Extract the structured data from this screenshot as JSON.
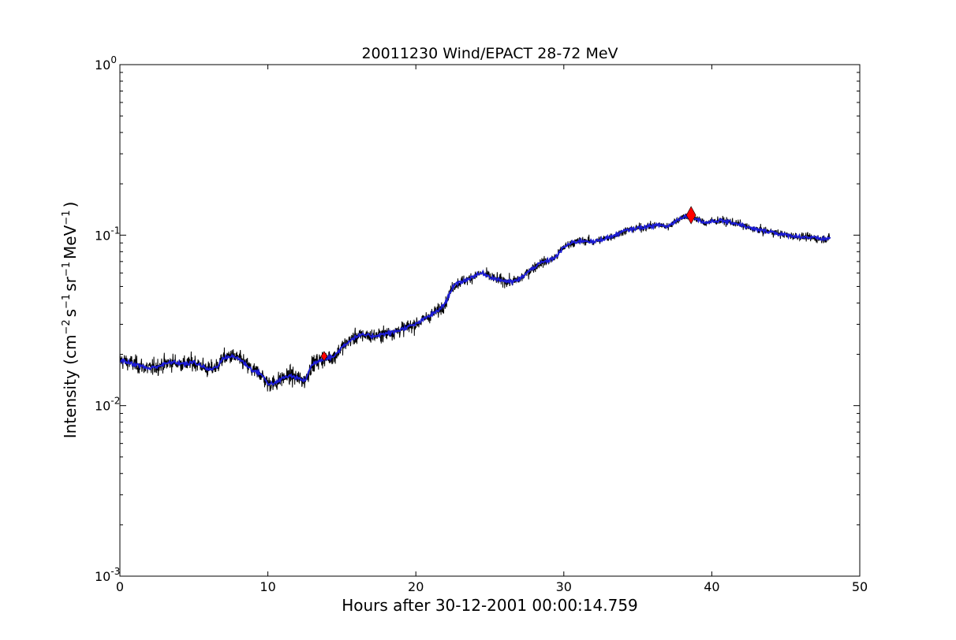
{
  "chart_data": {
    "type": "line",
    "title": "20011230 Wind/EPACT 28-72 MeV",
    "xlabel": "Hours after 30-12-2001 00:00:14.759",
    "ylabel": {
      "prefix": "Intensity (cm",
      "sup1": "−2",
      "mid1": "s",
      "sup2": "−1",
      "mid2": "sr",
      "sup3": "−1",
      "mid3": "MeV",
      "sup4": "−1",
      "suffix": ")"
    },
    "xlim": [
      0,
      50
    ],
    "ylim": [
      0.001,
      1
    ],
    "yscale": "log",
    "grid": false,
    "xticks": [
      {
        "value": 0,
        "label": "0"
      },
      {
        "value": 10,
        "label": "10"
      },
      {
        "value": 20,
        "label": "20"
      },
      {
        "value": 30,
        "label": "30"
      },
      {
        "value": 40,
        "label": "40"
      },
      {
        "value": 50,
        "label": "50"
      }
    ],
    "yticks": [
      {
        "value": 0.001,
        "base": "10",
        "exp": "-3"
      },
      {
        "value": 0.01,
        "base": "10",
        "exp": "-2"
      },
      {
        "value": 0.1,
        "base": "10",
        "exp": "-1"
      },
      {
        "value": 1,
        "base": "10",
        "exp": "0"
      }
    ],
    "series": [
      {
        "role": "raw",
        "color": "#000000",
        "noise_dex": 0.08,
        "x": [
          0,
          0.5,
          1,
          1.5,
          2,
          2.5,
          3,
          3.5,
          4,
          4.5,
          5,
          5.5,
          6,
          6.5,
          7,
          7.5,
          8,
          8.5,
          9,
          9.5,
          10,
          10.5,
          11,
          11.5,
          12,
          12.5,
          13,
          13.5,
          14,
          14.5,
          15,
          15.5,
          16,
          16.5,
          17,
          17.5,
          18,
          18.5,
          19,
          19.5,
          20,
          20.5,
          21,
          21.5,
          22,
          22.5,
          23,
          23.5,
          24,
          24.5,
          25,
          25.5,
          26,
          26.5,
          27,
          27.5,
          28,
          28.5,
          29,
          29.5,
          30,
          30.5,
          31,
          31.5,
          32,
          32.5,
          33,
          33.5,
          34,
          34.5,
          35,
          35.5,
          36,
          36.5,
          37,
          37.5,
          38,
          38.5,
          39,
          39.5,
          40,
          40.5,
          41,
          41.5,
          42,
          42.5,
          43,
          43.5,
          44,
          44.5,
          45,
          45.5,
          46,
          46.5,
          47,
          47.5,
          48
        ],
        "y": [
          0.0185,
          0.018,
          0.0175,
          0.017,
          0.0165,
          0.017,
          0.0175,
          0.018,
          0.0178,
          0.0175,
          0.018,
          0.0172,
          0.0162,
          0.0168,
          0.019,
          0.0195,
          0.019,
          0.0175,
          0.016,
          0.0155,
          0.0135,
          0.0135,
          0.0145,
          0.015,
          0.0145,
          0.014,
          0.0175,
          0.0185,
          0.019,
          0.0195,
          0.022,
          0.024,
          0.0255,
          0.026,
          0.0255,
          0.026,
          0.0265,
          0.027,
          0.028,
          0.029,
          0.03,
          0.032,
          0.034,
          0.036,
          0.04,
          0.05,
          0.053,
          0.055,
          0.058,
          0.06,
          0.057,
          0.055,
          0.054,
          0.053,
          0.055,
          0.06,
          0.065,
          0.069,
          0.071,
          0.075,
          0.085,
          0.09,
          0.092,
          0.093,
          0.091,
          0.094,
          0.097,
          0.1,
          0.105,
          0.108,
          0.11,
          0.112,
          0.113,
          0.115,
          0.112,
          0.12,
          0.128,
          0.13,
          0.125,
          0.118,
          0.12,
          0.122,
          0.12,
          0.118,
          0.115,
          0.11,
          0.108,
          0.106,
          0.105,
          0.102,
          0.1,
          0.099,
          0.098,
          0.097,
          0.096,
          0.095,
          0.096
        ]
      },
      {
        "role": "smoothed",
        "color": "#1c1cd6"
      }
    ],
    "markers": [
      {
        "x": 13.8,
        "y": 0.0195,
        "shape": "diamond",
        "size": "small",
        "color": "#ff0000"
      },
      {
        "x": 38.6,
        "y": 0.131,
        "shape": "diamond",
        "size": "large",
        "color": "#ff0000"
      }
    ]
  }
}
